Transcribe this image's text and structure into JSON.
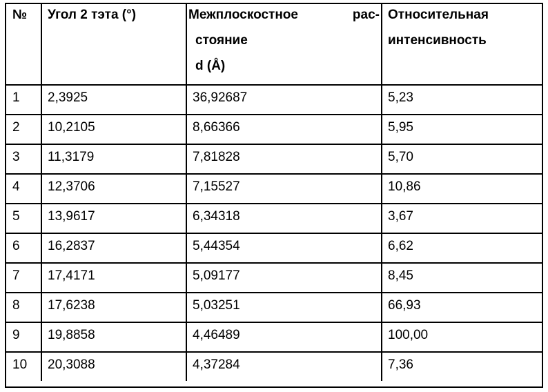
{
  "table": {
    "headers": {
      "num": "№",
      "angle": "Угол 2 тэта (°)",
      "d_line1_word": "Межплоскостное",
      "d_line1_hyphen": "рас-",
      "d_line2": "стояние",
      "d_line3": "d (Å)",
      "intensity_line1": "Относительная",
      "intensity_line2": "интенсивность"
    },
    "rows": [
      {
        "num": "1",
        "angle": "2,3925",
        "d": "36,92687",
        "intensity": "5,23"
      },
      {
        "num": "2",
        "angle": "10,2105",
        "d": "8,66366",
        "intensity": "5,95"
      },
      {
        "num": "3",
        "angle": "11,3179",
        "d": "7,81828",
        "intensity": "5,70"
      },
      {
        "num": "4",
        "angle": "12,3706",
        "d": "7,15527",
        "intensity": "10,86"
      },
      {
        "num": "5",
        "angle": "13,9617",
        "d": "6,34318",
        "intensity": "3,67"
      },
      {
        "num": "6",
        "angle": "16,2837",
        "d": "5,44354",
        "intensity": "6,62"
      },
      {
        "num": "7",
        "angle": "17,4171",
        "d": "5,09177",
        "intensity": "8,45"
      },
      {
        "num": "8",
        "angle": "17,6238",
        "d": "5,03251",
        "intensity": "66,93"
      },
      {
        "num": "9",
        "angle": "19,8858",
        "d": "4,46489",
        "intensity": "100,00"
      },
      {
        "num": "10",
        "angle": "20,3088",
        "d": "4,37284",
        "intensity": "7,36"
      }
    ]
  }
}
